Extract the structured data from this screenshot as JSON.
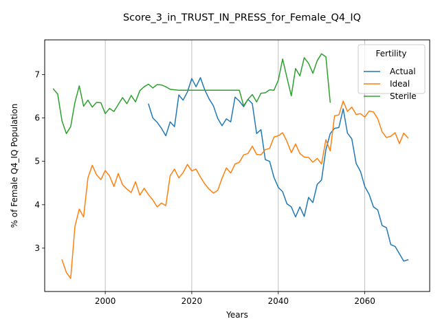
{
  "chart_data": {
    "type": "line",
    "title": "Score_3_in_TRUST_IN_PRESS_for_Female_Q4_IQ",
    "xlabel": "Years",
    "ylabel": "% of Female Q4_IQ Population",
    "xlim": [
      1986,
      2075
    ],
    "ylim": [
      2.0,
      7.8
    ],
    "xticks": [
      2000,
      2020,
      2040,
      2060
    ],
    "yticks": [
      3,
      4,
      5,
      6,
      7
    ],
    "grid": "vertical",
    "legend": {
      "title": "Fertility",
      "position": "top-right"
    },
    "series": [
      {
        "name": "Actual",
        "color": "#1f77b4",
        "x": [
          2010,
          2011,
          2012,
          2013,
          2014,
          2015,
          2016,
          2017,
          2018,
          2019,
          2020,
          2021,
          2022,
          2023,
          2024,
          2025,
          2026,
          2027,
          2028,
          2029,
          2030,
          2031,
          2032,
          2033,
          2034,
          2035,
          2036,
          2037,
          2038,
          2039,
          2040,
          2041,
          2042,
          2043,
          2044,
          2045,
          2046,
          2047,
          2048,
          2049,
          2050,
          2051,
          2052,
          2053,
          2054,
          2055,
          2056,
          2057,
          2058,
          2059,
          2060,
          2061,
          2062,
          2063,
          2064,
          2065,
          2066,
          2067,
          2068,
          2069,
          2070
        ],
        "values": [
          6.32,
          6.0,
          5.9,
          5.76,
          5.59,
          5.91,
          5.8,
          6.53,
          6.41,
          6.6,
          6.91,
          6.72,
          6.93,
          6.65,
          6.44,
          6.28,
          5.99,
          5.82,
          5.98,
          5.91,
          6.48,
          6.39,
          6.26,
          6.43,
          6.33,
          5.64,
          5.73,
          5.04,
          5.0,
          4.63,
          4.4,
          4.3,
          4.02,
          3.95,
          3.72,
          3.95,
          3.73,
          4.17,
          4.05,
          4.47,
          4.57,
          5.27,
          5.64,
          5.76,
          5.78,
          6.21,
          5.65,
          5.52,
          4.95,
          4.77,
          4.42,
          4.24,
          3.95,
          3.88,
          3.52,
          3.47,
          3.08,
          3.04,
          2.87,
          2.7,
          2.73
        ]
      },
      {
        "name": "Ideal",
        "color": "#ff7f0e",
        "x": [
          1990,
          1991,
          1992,
          1993,
          1994,
          1995,
          1996,
          1997,
          1998,
          1999,
          2000,
          2001,
          2002,
          2003,
          2004,
          2005,
          2006,
          2007,
          2008,
          2009,
          2010,
          2011,
          2012,
          2013,
          2014,
          2015,
          2016,
          2017,
          2018,
          2019,
          2020,
          2021,
          2022,
          2023,
          2024,
          2025,
          2026,
          2027,
          2028,
          2029,
          2030,
          2031,
          2032,
          2033,
          2034,
          2035,
          2036,
          2037,
          2038,
          2039,
          2040,
          2041,
          2042,
          2043,
          2044,
          2045,
          2046,
          2047,
          2048,
          2049,
          2050,
          2051,
          2052,
          2053,
          2054,
          2055,
          2056,
          2057,
          2058,
          2059,
          2060,
          2061,
          2062,
          2063,
          2064,
          2065,
          2066,
          2067,
          2068,
          2069,
          2070
        ],
        "values": [
          2.73,
          2.44,
          2.3,
          3.5,
          3.9,
          3.72,
          4.62,
          4.91,
          4.69,
          4.58,
          4.79,
          4.66,
          4.42,
          4.72,
          4.46,
          4.36,
          4.28,
          4.53,
          4.22,
          4.38,
          4.23,
          4.11,
          3.95,
          4.04,
          3.98,
          4.67,
          4.82,
          4.62,
          4.74,
          4.93,
          4.78,
          4.82,
          4.64,
          4.48,
          4.36,
          4.27,
          4.33,
          4.61,
          4.85,
          4.73,
          4.94,
          4.98,
          5.15,
          5.18,
          5.35,
          5.16,
          5.15,
          5.27,
          5.3,
          5.56,
          5.59,
          5.66,
          5.46,
          5.2,
          5.4,
          5.18,
          5.1,
          5.09,
          4.98,
          5.07,
          4.94,
          5.5,
          5.24,
          6.05,
          6.07,
          6.39,
          6.15,
          6.25,
          6.08,
          6.1,
          6.02,
          6.16,
          6.14,
          5.98,
          5.68,
          5.55,
          5.58,
          5.66,
          5.41,
          5.65,
          5.54
        ]
      },
      {
        "name": "Sterile",
        "color": "#2ca02c",
        "x": [
          1988,
          1989,
          1990,
          1991,
          1992,
          1993,
          1994,
          1995,
          1996,
          1997,
          1998,
          1999,
          2000,
          2001,
          2002,
          2003,
          2004,
          2005,
          2006,
          2007,
          2008,
          2009,
          2010,
          2011,
          2012,
          2013,
          2014,
          2015,
          2016,
          2017,
          2018,
          2019,
          2020,
          2021,
          2022,
          2023,
          2024,
          2025,
          2026,
          2027,
          2028,
          2029,
          2030,
          2031,
          2032,
          2033,
          2034,
          2035,
          2036,
          2037,
          2038,
          2039,
          2040,
          2041,
          2042,
          2043,
          2044,
          2045,
          2046,
          2047,
          2048,
          2049,
          2050,
          2051,
          2052
        ],
        "values": [
          6.67,
          6.55,
          5.93,
          5.64,
          5.8,
          6.36,
          6.74,
          6.27,
          6.41,
          6.25,
          6.36,
          6.35,
          6.1,
          6.22,
          6.15,
          6.31,
          6.47,
          6.33,
          6.52,
          6.37,
          6.63,
          6.72,
          6.78,
          6.69,
          6.77,
          6.76,
          6.72,
          6.66,
          6.65,
          6.64,
          6.64,
          6.64,
          6.64,
          6.64,
          6.64,
          6.64,
          6.64,
          6.64,
          6.64,
          6.64,
          6.64,
          6.64,
          6.64,
          6.64,
          6.28,
          6.43,
          6.54,
          6.37,
          6.57,
          6.58,
          6.65,
          6.64,
          6.87,
          7.36,
          6.93,
          6.51,
          7.14,
          6.97,
          7.39,
          7.26,
          7.03,
          7.32,
          7.48,
          7.41,
          6.36
        ]
      }
    ]
  }
}
